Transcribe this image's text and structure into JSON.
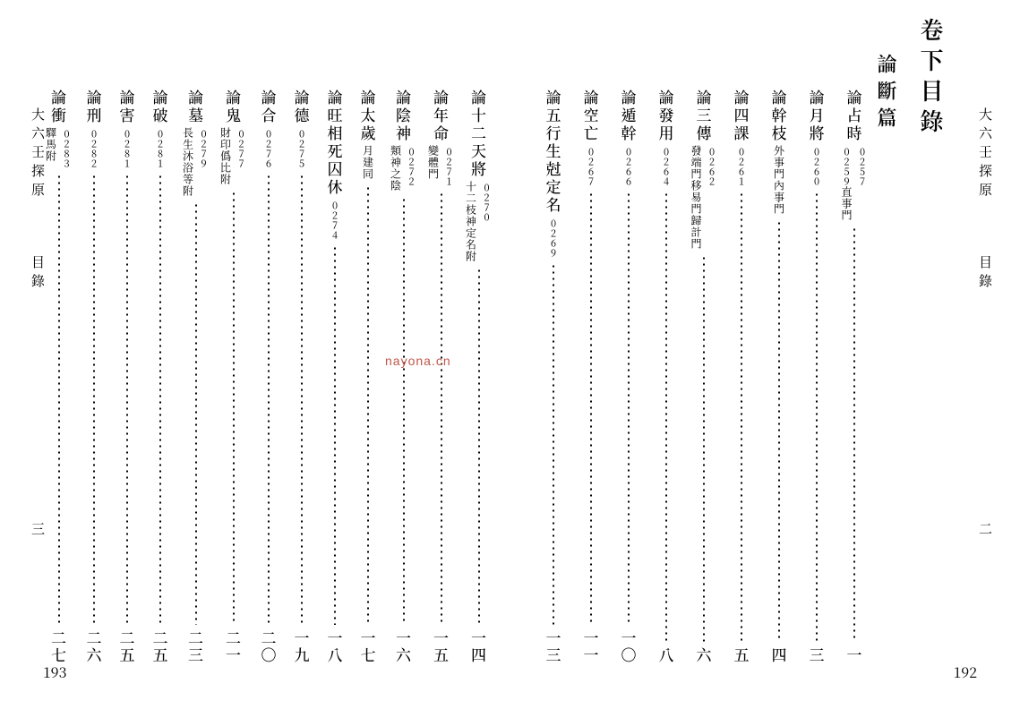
{
  "book_title_running": "大六壬探原",
  "running_sub": "目錄",
  "pages": {
    "right": {
      "arabic": "192",
      "cn": "二"
    },
    "left": {
      "arabic": "193",
      "cn": "三"
    }
  },
  "headings": {
    "volume": "卷下目錄",
    "section": "論斷篇"
  },
  "watermark": "nayona.cn",
  "toc_right": [
    {
      "title": "論占時",
      "subs": [
        {
          "label": "",
          "code": "0257"
        },
        {
          "label": "直事門",
          "code": "0259"
        }
      ],
      "page_cn": "一"
    },
    {
      "title": "論月將",
      "subs": [
        {
          "label": "",
          "code": "0260"
        }
      ],
      "page_cn": "三"
    },
    {
      "title": "論幹枝",
      "subs": [
        {
          "label": "外事門內事門",
          "code": ""
        }
      ],
      "page_cn": "四"
    },
    {
      "title": "論四課",
      "subs": [
        {
          "label": "",
          "code": "0261"
        }
      ],
      "page_cn": "五"
    },
    {
      "title": "論三傳",
      "subs": [
        {
          "label": "",
          "code": "0262"
        },
        {
          "label": "發端門移易門歸計門",
          "code": ""
        }
      ],
      "page_cn": "六"
    },
    {
      "title": "論發用",
      "subs": [
        {
          "label": "",
          "code": "0264"
        }
      ],
      "page_cn": "八"
    },
    {
      "title": "論遁幹",
      "subs": [
        {
          "label": "",
          "code": "0266"
        }
      ],
      "page_cn": "一〇"
    },
    {
      "title": "論空亡",
      "subs": [
        {
          "label": "",
          "code": "0267"
        }
      ],
      "page_cn": "一一"
    },
    {
      "title": "論五行生尅定名",
      "subs": [
        {
          "label": "",
          "code": "0269"
        }
      ],
      "page_cn": "一三"
    }
  ],
  "toc_left": [
    {
      "title": "論十二天將",
      "subs": [
        {
          "label": "",
          "code": "0270"
        },
        {
          "label": "十二枝神定名附",
          "code": ""
        }
      ],
      "page_cn": "一四"
    },
    {
      "title": "論年命",
      "subs": [
        {
          "label": "",
          "code": "0271"
        },
        {
          "label": "變體門",
          "code": ""
        }
      ],
      "page_cn": "一五"
    },
    {
      "title": "論陰神",
      "subs": [
        {
          "label": "",
          "code": "0272"
        },
        {
          "label": "類神之陰",
          "code": ""
        }
      ],
      "page_cn": "一六"
    },
    {
      "title": "論太歲",
      "subs": [
        {
          "label": "月建同",
          "code": ""
        }
      ],
      "page_cn": "一七"
    },
    {
      "title": "論旺相死囚休",
      "subs": [
        {
          "label": "",
          "code": "0274"
        }
      ],
      "page_cn": "一八"
    },
    {
      "title": "論德",
      "subs": [
        {
          "label": "",
          "code": "0275"
        }
      ],
      "page_cn": "一九"
    },
    {
      "title": "論合",
      "subs": [
        {
          "label": "",
          "code": "0276"
        }
      ],
      "page_cn": "二〇"
    },
    {
      "title": "論鬼",
      "subs": [
        {
          "label": "",
          "code": "0277"
        },
        {
          "label": "財印僞比附",
          "code": ""
        }
      ],
      "page_cn": "二一"
    },
    {
      "title": "論墓",
      "subs": [
        {
          "label": "",
          "code": "0279"
        },
        {
          "label": "長生沐浴等附",
          "code": ""
        }
      ],
      "page_cn": "二三"
    },
    {
      "title": "論破",
      "subs": [
        {
          "label": "",
          "code": "0281"
        }
      ],
      "page_cn": "二五"
    },
    {
      "title": "論害",
      "subs": [
        {
          "label": "",
          "code": "0281"
        }
      ],
      "page_cn": "二五"
    },
    {
      "title": "論刑",
      "subs": [
        {
          "label": "",
          "code": "0282"
        }
      ],
      "page_cn": "二六"
    },
    {
      "title": "論衝",
      "subs": [
        {
          "label": "",
          "code": "0283"
        },
        {
          "label": "驛馬附",
          "code": ""
        }
      ],
      "page_cn": "二七"
    }
  ]
}
